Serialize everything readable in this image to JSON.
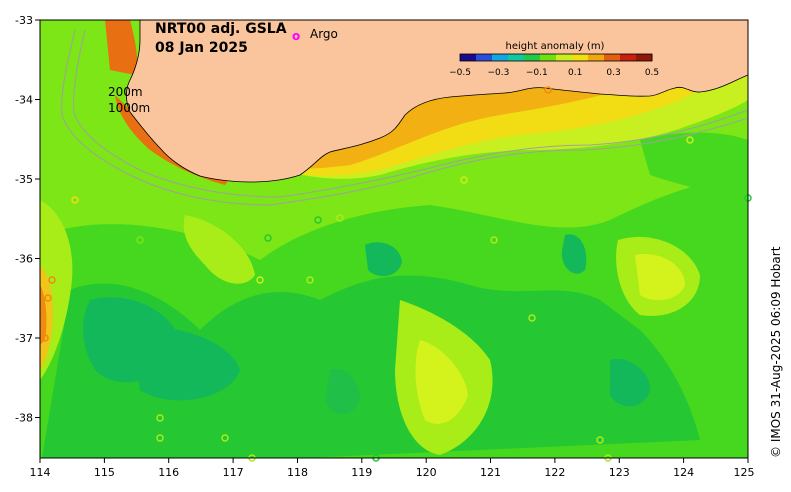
{
  "map": {
    "title": "NRT00 adj. GSLA",
    "date": "08 Jan 2025",
    "legend_argo": "Argo",
    "argo_marker": "o",
    "contour_200": "200m",
    "contour_1000": "1000m",
    "credit": "© IMOS 31-Aug-2025 06:09 Hobart"
  },
  "axes": {
    "x_ticks": [
      "114",
      "115",
      "116",
      "117",
      "118",
      "119",
      "120",
      "121",
      "122",
      "123",
      "124",
      "125"
    ],
    "y_ticks": [
      "-33",
      "-34",
      "-35",
      "-36",
      "-37",
      "-38"
    ]
  },
  "colorbar": {
    "title": "height anomaly (m)",
    "ticks": [
      "−0.5",
      "−0.3",
      "−0.1",
      "0.1",
      "0.3",
      "0.5"
    ],
    "stops": [
      "#1a0a8c",
      "#2a4fd8",
      "#13a6e0",
      "#10c8a0",
      "#22c84a",
      "#6fe010",
      "#c8f020",
      "#f0e010",
      "#f0a810",
      "#e06010",
      "#c82010",
      "#901808"
    ]
  },
  "colors": {
    "land": "#fac59c",
    "argo": "#ff00ff",
    "contour": "#a0a0a0"
  }
}
